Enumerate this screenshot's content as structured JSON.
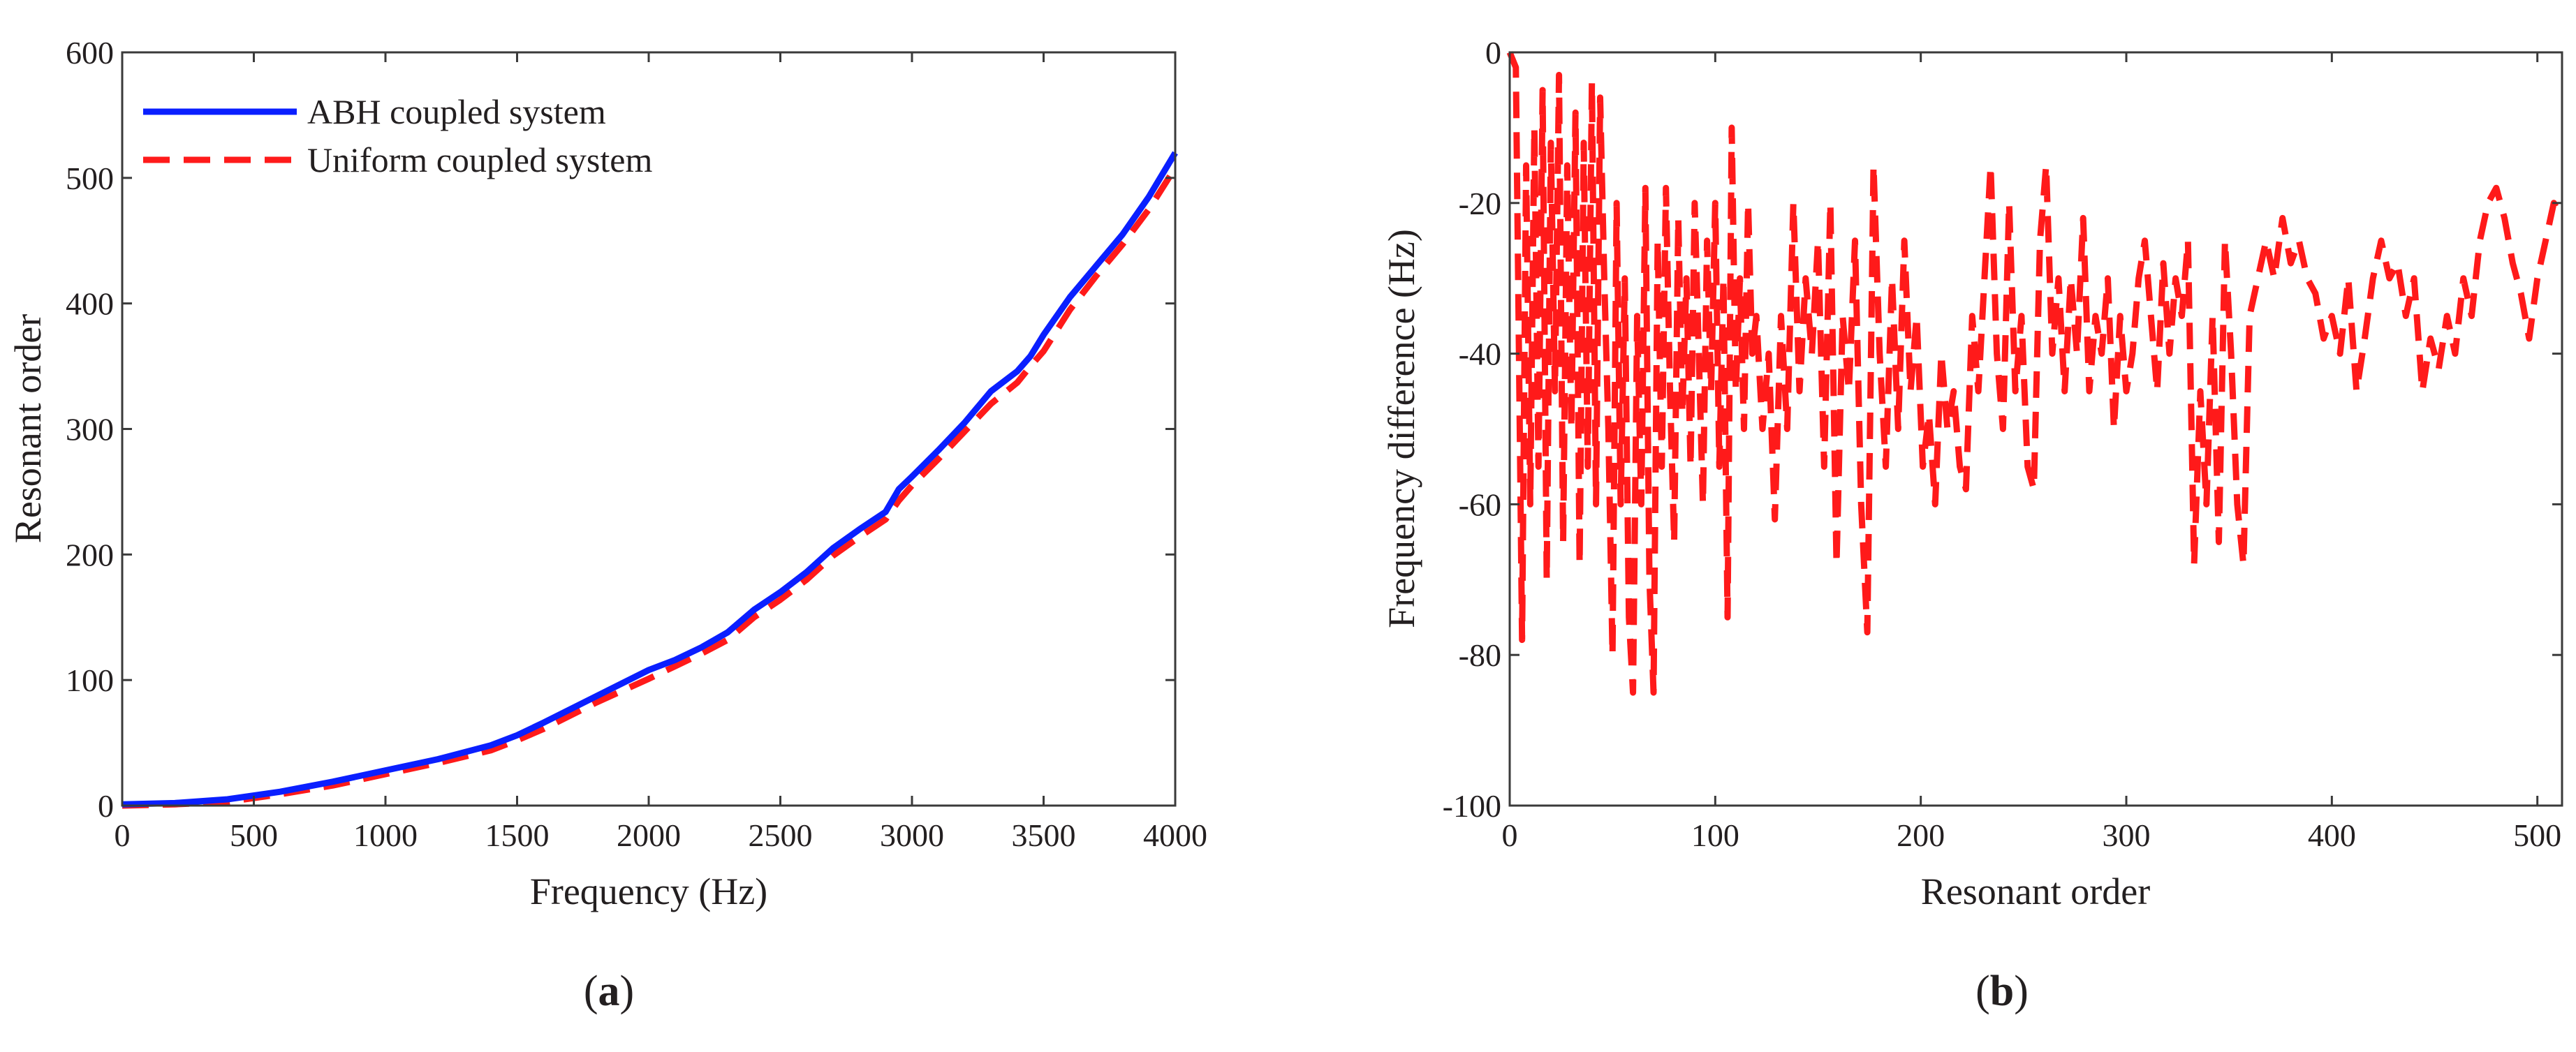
{
  "chart_data": [
    {
      "type": "line",
      "panel_label_prefix": "(",
      "panel_label_letter": "a",
      "panel_label_suffix": ")",
      "xlabel": "Frequency (Hz)",
      "ylabel": "Resonant order",
      "xlim": [
        0,
        4000
      ],
      "ylim": [
        0,
        600
      ],
      "xticks": [
        0,
        500,
        1000,
        1500,
        2000,
        2500,
        3000,
        3500,
        4000
      ],
      "yticks": [
        0,
        100,
        200,
        300,
        400,
        500,
        600
      ],
      "grid": false,
      "legend_position": "top-left",
      "series": [
        {
          "name": "ABH coupled system",
          "color": "#0a1fff",
          "style": "solid",
          "x": [
            0,
            200,
            400,
            600,
            800,
            1000,
            1200,
            1400,
            1500,
            1600,
            1800,
            2000,
            2100,
            2200,
            2300,
            2400,
            2500,
            2600,
            2700,
            2800,
            2900,
            2950,
            3000,
            3100,
            3200,
            3300,
            3400,
            3450,
            3500,
            3600,
            3700,
            3800,
            3900,
            4000
          ],
          "y": [
            1,
            2,
            5,
            11,
            19,
            28,
            37,
            48,
            56,
            66,
            87,
            108,
            116,
            126,
            138,
            156,
            170,
            186,
            205,
            220,
            234,
            252,
            262,
            283,
            305,
            330,
            346,
            358,
            375,
            405,
            430,
            455,
            485,
            520
          ]
        },
        {
          "name": "Uniform coupled system",
          "color": "#ff1a1a",
          "style": "dashed",
          "x": [
            0,
            200,
            400,
            600,
            800,
            1000,
            1200,
            1400,
            1500,
            1600,
            1800,
            2000,
            2100,
            2200,
            2300,
            2400,
            2500,
            2600,
            2700,
            2800,
            2900,
            2950,
            3000,
            3100,
            3200,
            3300,
            3400,
            3450,
            3500,
            3600,
            3700,
            3800,
            3900,
            4000
          ],
          "y": [
            0,
            1,
            3,
            9,
            16,
            25,
            34,
            44,
            52,
            61,
            82,
            101,
            111,
            121,
            132,
            150,
            164,
            180,
            199,
            214,
            228,
            243,
            255,
            276,
            298,
            320,
            337,
            350,
            362,
            395,
            422,
            447,
            475,
            508
          ]
        }
      ]
    },
    {
      "type": "line",
      "panel_label_prefix": "(",
      "panel_label_letter": "b",
      "panel_label_suffix": ")",
      "xlabel": "Resonant order",
      "ylabel": "Frequency difference (Hz)",
      "xlim": [
        0,
        512
      ],
      "ylim": [
        -100,
        0
      ],
      "xticks": [
        0,
        100,
        200,
        300,
        400,
        500
      ],
      "yticks": [
        0,
        -20,
        -40,
        -60,
        -80,
        -100
      ],
      "grid": false,
      "series": [
        {
          "name": "Frequency difference",
          "color": "#ff1a1a",
          "style": "dashed",
          "x": [
            0,
            3,
            6,
            8,
            10,
            12,
            14,
            16,
            18,
            20,
            22,
            24,
            26,
            28,
            30,
            32,
            34,
            36,
            38,
            40,
            42,
            44,
            46,
            48,
            50,
            52,
            54,
            56,
            58,
            60,
            62,
            64,
            66,
            68,
            70,
            72,
            74,
            76,
            78,
            80,
            82,
            84,
            86,
            88,
            90,
            92,
            94,
            96,
            98,
            100,
            102,
            104,
            106,
            108,
            110,
            112,
            114,
            116,
            118,
            120,
            123,
            126,
            129,
            132,
            135,
            138,
            141,
            144,
            147,
            150,
            153,
            156,
            159,
            162,
            165,
            168,
            171,
            174,
            177,
            180,
            183,
            186,
            189,
            192,
            195,
            198,
            201,
            204,
            207,
            210,
            213,
            216,
            219,
            222,
            225,
            228,
            231,
            234,
            237,
            240,
            243,
            246,
            249,
            252,
            255,
            258,
            261,
            264,
            267,
            270,
            273,
            276,
            279,
            282,
            285,
            288,
            291,
            294,
            297,
            300,
            303,
            306,
            309,
            312,
            315,
            318,
            321,
            324,
            327,
            330,
            333,
            336,
            339,
            342,
            345,
            348,
            351,
            354,
            357,
            360,
            364,
            368,
            372,
            376,
            380,
            384,
            388,
            392,
            396,
            400,
            404,
            408,
            412,
            416,
            420,
            424,
            428,
            432,
            436,
            440,
            444,
            448,
            452,
            456,
            460,
            464,
            468,
            472,
            476,
            480,
            484,
            488,
            492,
            496,
            500,
            504,
            508,
            512
          ],
          "y": [
            0,
            -2,
            -78,
            -15,
            -60,
            -10,
            -55,
            -5,
            -70,
            -12,
            -45,
            -3,
            -65,
            -15,
            -50,
            -8,
            -68,
            -12,
            -55,
            -4,
            -60,
            -6,
            -30,
            -50,
            -80,
            -20,
            -60,
            -30,
            -75,
            -85,
            -35,
            -60,
            -18,
            -70,
            -85,
            -25,
            -55,
            -18,
            -45,
            -65,
            -22,
            -48,
            -30,
            -55,
            -20,
            -40,
            -60,
            -25,
            -45,
            -20,
            -55,
            -30,
            -75,
            -10,
            -45,
            -30,
            -50,
            -20,
            -40,
            -35,
            -50,
            -40,
            -62,
            -35,
            -50,
            -20,
            -45,
            -30,
            -40,
            -25,
            -55,
            -20,
            -68,
            -35,
            -45,
            -25,
            -60,
            -77,
            -15,
            -40,
            -55,
            -30,
            -50,
            -25,
            -45,
            -35,
            -55,
            -48,
            -60,
            -40,
            -50,
            -45,
            -55,
            -58,
            -35,
            -45,
            -30,
            -15,
            -40,
            -50,
            -20,
            -45,
            -35,
            -55,
            -58,
            -25,
            -15,
            -40,
            -30,
            -45,
            -30,
            -40,
            -22,
            -45,
            -35,
            -40,
            -30,
            -50,
            -35,
            -45,
            -40,
            -30,
            -25,
            -35,
            -45,
            -28,
            -40,
            -30,
            -35,
            -25,
            -68,
            -45,
            -60,
            -35,
            -65,
            -25,
            -40,
            -60,
            -68,
            -35,
            -30,
            -25,
            -30,
            -22,
            -28,
            -25,
            -30,
            -32,
            -38,
            -35,
            -40,
            -30,
            -45,
            -38,
            -30,
            -25,
            -30,
            -28,
            -35,
            -30,
            -45,
            -38,
            -42,
            -35,
            -40,
            -30,
            -35,
            -25,
            -20,
            -18,
            -22,
            -28,
            -32,
            -38,
            -30,
            -25,
            -20,
            -22
          ]
        }
      ]
    }
  ]
}
